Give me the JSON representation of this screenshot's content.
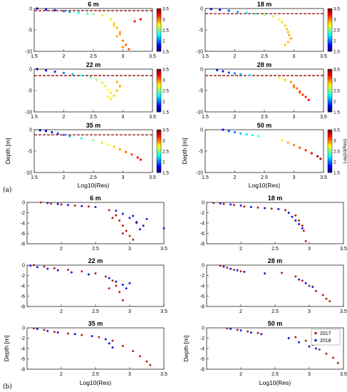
{
  "figure_labels": {
    "a": "(a)",
    "b": "(b)"
  },
  "legend": {
    "entries": [
      "2017",
      "2018"
    ],
    "colors": [
      "#b02a18",
      "#1a1ae0"
    ]
  },
  "colorbar": {
    "label": "Log10(Res)",
    "ticks": [
      "3.5",
      "3",
      "2.5",
      "2",
      "1.5"
    ],
    "range": [
      1.5,
      3.5
    ],
    "colormap": "jet"
  },
  "axes_text": {
    "xlabel": "Log10(Res)",
    "ylabel": "Depth [m]"
  },
  "chart_data": [
    {
      "type": "scatter",
      "section": "a",
      "title": "6 m",
      "threshold_depth": -0.5,
      "color_by": "x",
      "xlim": [
        1.5,
        3.5
      ],
      "ylim": [
        -10,
        0
      ],
      "xticks": [
        "1.5",
        "2",
        "2.5",
        "3",
        "3.5"
      ],
      "yticks": [
        "0",
        "-5",
        "-10"
      ],
      "x": [
        1.55,
        1.7,
        1.85,
        2.0,
        2.1,
        2.25,
        2.4,
        2.5,
        2.65,
        2.8,
        2.85,
        2.9,
        2.95,
        2.9,
        3.0,
        3.05,
        3.1,
        3.2,
        3.3,
        2.85,
        2.95,
        3.0
      ],
      "y": [
        0,
        -0.2,
        -0.4,
        -0.6,
        -0.8,
        -1.0,
        -1.2,
        -1.3,
        -1.6,
        -2.5,
        -3.5,
        -4.5,
        -5.5,
        -6.5,
        -7.5,
        -8.5,
        -9.5,
        -3,
        -2.5,
        -4,
        -6,
        -9
      ]
    },
    {
      "type": "scatter",
      "section": "a",
      "title": "18 m",
      "threshold_depth": -1.2,
      "color_by": "x",
      "xlim": [
        1.5,
        3.5
      ],
      "ylim": [
        -10,
        0
      ],
      "xticks": [
        "1.5",
        "2",
        "2.5",
        "3",
        "3.5"
      ],
      "yticks": [
        "0",
        "-5",
        "-10"
      ],
      "x": [
        1.6,
        1.75,
        1.9,
        2.05,
        2.2,
        2.35,
        2.5,
        2.65,
        2.75,
        2.8,
        2.85,
        2.88,
        2.9,
        2.92,
        2.95,
        2.9,
        2.85
      ],
      "y": [
        -0.1,
        -0.3,
        -0.5,
        -0.8,
        -1.0,
        -1.2,
        -1.4,
        -1.8,
        -2.5,
        -3.2,
        -4.0,
        -4.8,
        -5.5,
        -6.2,
        -7.0,
        -7.8,
        -8.5
      ]
    },
    {
      "type": "scatter",
      "section": "a",
      "title": "22 m",
      "threshold_depth": -1.5,
      "color_by": "x",
      "xlim": [
        1.5,
        3.5
      ],
      "ylim": [
        -10,
        0
      ],
      "xticks": [
        "1.5",
        "2",
        "2.5",
        "3",
        "3.5"
      ],
      "yticks": [
        "0",
        "-5",
        "-10"
      ],
      "x": [
        1.55,
        1.7,
        1.85,
        2.0,
        2.15,
        2.3,
        2.45,
        2.55,
        2.65,
        2.7,
        2.75,
        2.8,
        2.85,
        2.9,
        2.95,
        2.8,
        2.75,
        2.9
      ],
      "y": [
        0,
        -0.3,
        -0.6,
        -0.9,
        -1.2,
        -1.5,
        -1.9,
        -2.5,
        -3.2,
        -4.0,
        -4.8,
        -5.5,
        -6.2,
        -5.0,
        -4.0,
        -7.0,
        -6.5,
        -3.0
      ]
    },
    {
      "type": "scatter",
      "section": "a",
      "title": "28 m",
      "threshold_depth": -1.5,
      "color_by": "x",
      "xlim": [
        1.5,
        3.5
      ],
      "ylim": [
        -10,
        0
      ],
      "xticks": [
        "1.5",
        "2",
        "2.5",
        "3",
        "3.5"
      ],
      "yticks": [
        "0",
        "-5",
        "-10"
      ],
      "x": [
        1.7,
        1.8,
        1.9,
        2.0,
        2.1,
        2.25,
        2.75,
        2.85,
        2.95,
        3.0,
        3.05,
        3.1,
        3.15,
        3.2,
        3.25,
        3.0,
        3.1
      ],
      "y": [
        -0.2,
        -0.5,
        -0.8,
        -1.0,
        -1.2,
        -1.4,
        -2.0,
        -2.5,
        -3.0,
        -3.8,
        -4.5,
        -5.2,
        -6.0,
        -6.5,
        -7.2,
        -4.2,
        -5.5
      ]
    },
    {
      "type": "scatter",
      "section": "a",
      "title": "35 m",
      "threshold_depth": -1.2,
      "color_by": "x",
      "xlim": [
        1.5,
        3.5
      ],
      "ylim": [
        -10,
        0
      ],
      "xticks": [
        "1.5",
        "2",
        "2.5",
        "3",
        "3.5"
      ],
      "yticks": [
        "0",
        "-5",
        "-10"
      ],
      "x": [
        1.6,
        1.7,
        1.8,
        1.9,
        2.0,
        2.1,
        2.3,
        2.5,
        2.65,
        2.75,
        2.85,
        2.95,
        3.05,
        3.15,
        3.25,
        3.3
      ],
      "y": [
        -0.1,
        -0.3,
        -0.6,
        -0.9,
        -1.2,
        -1.5,
        -2.0,
        -2.5,
        -3.0,
        -3.5,
        -4.0,
        -4.6,
        -5.2,
        -5.8,
        -6.5,
        -7.0
      ]
    },
    {
      "type": "scatter",
      "section": "a",
      "title": "50 m",
      "threshold_depth": null,
      "color_by": "x",
      "xlim": [
        1.5,
        3.5
      ],
      "ylim": [
        -10,
        0
      ],
      "xticks": [
        "1.5",
        "2",
        "2.5",
        "3",
        "3.5"
      ],
      "yticks": [
        "0",
        "-5",
        "-10"
      ],
      "x": [
        1.8,
        1.9,
        2.0,
        2.1,
        2.2,
        2.3,
        2.4,
        2.8,
        2.9,
        3.0,
        3.1,
        3.2,
        3.3,
        3.4,
        3.45
      ],
      "y": [
        0,
        -0.3,
        -0.6,
        -0.9,
        -1.1,
        -1.3,
        -1.5,
        -2.5,
        -3.0,
        -3.6,
        -4.2,
        -4.8,
        -5.5,
        -6.2,
        -6.8
      ]
    },
    {
      "type": "scatter",
      "section": "b",
      "title": "6 m",
      "xlim": [
        1.5,
        3.5
      ],
      "ylim": [
        -8,
        0
      ],
      "xticks": [
        "2",
        "2.5",
        "3",
        "3.5"
      ],
      "yticks": [
        "0",
        "-2",
        "-4",
        "-6",
        "-8"
      ],
      "series": [
        {
          "name": "2017",
          "x": [
            1.7,
            1.85,
            2.0,
            2.2,
            2.4,
            2.7,
            2.8,
            2.85,
            2.9,
            2.95,
            3.0,
            3.05,
            2.9,
            3.1,
            2.75
          ],
          "y": [
            0,
            -0.2,
            -0.4,
            -0.6,
            -0.8,
            -1.5,
            -2.5,
            -3.5,
            -4.5,
            -5.5,
            -6.5,
            -7.2,
            -6.0,
            -4.0,
            -3.0
          ]
        },
        {
          "name": "2018",
          "x": [
            1.8,
            1.95,
            2.1,
            2.3,
            2.5,
            2.8,
            2.9,
            3.0,
            3.1,
            3.2,
            3.25,
            3.15,
            3.05,
            3.5
          ],
          "y": [
            -0.1,
            -0.3,
            -0.5,
            -0.7,
            -0.9,
            -1.6,
            -2.2,
            -3.0,
            -3.8,
            -4.5,
            -3.2,
            -5.2,
            -2.6,
            -5.0
          ]
        }
      ]
    },
    {
      "type": "scatter",
      "section": "b",
      "title": "18 m",
      "xlim": [
        1.5,
        3.5
      ],
      "ylim": [
        -8,
        0
      ],
      "xticks": [
        "2",
        "2.5",
        "3",
        "3.5"
      ],
      "yticks": [
        "0",
        "-2",
        "-4",
        "-6",
        "-8"
      ],
      "series": [
        {
          "name": "2017",
          "x": [
            1.6,
            1.75,
            1.9,
            2.05,
            2.25,
            2.45,
            2.65,
            2.8,
            2.85,
            2.9,
            2.92,
            2.95
          ],
          "y": [
            -0.1,
            -0.3,
            -0.5,
            -0.8,
            -1.0,
            -1.2,
            -1.5,
            -2.5,
            -3.5,
            -4.5,
            -5.5,
            -7.5
          ]
        },
        {
          "name": "2018",
          "x": [
            1.7,
            1.85,
            2.0,
            2.15,
            2.35,
            2.55,
            2.7,
            2.75,
            2.8,
            2.85,
            2.9
          ],
          "y": [
            -0.2,
            -0.4,
            -0.6,
            -0.9,
            -1.1,
            -1.3,
            -2.0,
            -2.8,
            -3.5,
            -4.2,
            -5.0
          ]
        }
      ]
    },
    {
      "type": "scatter",
      "section": "b",
      "title": "22 m",
      "xlim": [
        1.5,
        3.5
      ],
      "ylim": [
        -8,
        0
      ],
      "xticks": [
        "2",
        "2.5",
        "3",
        "3.5"
      ],
      "yticks": [
        "0",
        "-2",
        "-4",
        "-6",
        "-8"
      ],
      "series": [
        {
          "name": "2017",
          "x": [
            1.6,
            1.75,
            1.9,
            2.1,
            2.3,
            2.5,
            2.65,
            2.75,
            2.8,
            2.85,
            2.9,
            2.7
          ],
          "y": [
            0,
            -0.3,
            -0.6,
            -0.9,
            -1.2,
            -1.6,
            -2.2,
            -3.0,
            -4.0,
            -5.2,
            -6.8,
            -4.5
          ]
        },
        {
          "name": "2018",
          "x": [
            1.55,
            1.65,
            1.8,
            1.95,
            2.15,
            2.4,
            2.7,
            2.8,
            2.9,
            2.95,
            3.0
          ],
          "y": [
            -0.1,
            -0.4,
            -0.7,
            -1.0,
            -1.4,
            -1.8,
            -2.5,
            -3.2,
            -3.8,
            -4.5,
            -3.5
          ]
        }
      ]
    },
    {
      "type": "scatter",
      "section": "b",
      "title": "28 m",
      "xlim": [
        1.5,
        3.5
      ],
      "ylim": [
        -8,
        0
      ],
      "xticks": [
        "2",
        "2.5",
        "3",
        "3.5"
      ],
      "yticks": [
        "0",
        "-2",
        "-4",
        "-6",
        "-8"
      ],
      "series": [
        {
          "name": "2017",
          "x": [
            1.7,
            1.8,
            1.9,
            2.0,
            2.6,
            2.8,
            2.9,
            3.0,
            3.1,
            3.2,
            3.25,
            3.3
          ],
          "y": [
            -0.1,
            -0.5,
            -0.9,
            -1.2,
            -1.5,
            -2.2,
            -3.0,
            -4.0,
            -5.0,
            -5.8,
            -6.5,
            -7.0
          ]
        },
        {
          "name": "2018",
          "x": [
            1.75,
            1.85,
            1.95,
            2.05,
            2.35,
            2.85,
            2.95,
            3.05
          ],
          "y": [
            -0.3,
            -0.7,
            -1.0,
            -1.3,
            -1.6,
            -2.8,
            -3.5,
            -4.2
          ]
        }
      ]
    },
    {
      "type": "scatter",
      "section": "b",
      "title": "35 m",
      "xlim": [
        1.5,
        3.5
      ],
      "ylim": [
        -8,
        0
      ],
      "xticks": [
        "2",
        "2.5",
        "3",
        "3.5"
      ],
      "yticks": [
        "0",
        "-2",
        "-4",
        "-6",
        "-8"
      ],
      "series": [
        {
          "name": "2017",
          "x": [
            1.6,
            1.75,
            1.9,
            2.1,
            2.3,
            2.55,
            2.75,
            2.9,
            3.05,
            3.15,
            3.25,
            3.3
          ],
          "y": [
            -0.1,
            -0.4,
            -0.8,
            -1.1,
            -1.4,
            -1.8,
            -2.5,
            -3.5,
            -4.5,
            -5.5,
            -6.5,
            -7.2
          ]
        },
        {
          "name": "2018",
          "x": [
            1.65,
            1.8,
            1.95,
            2.2,
            2.45,
            2.65,
            2.7,
            2.75
          ],
          "y": [
            -0.2,
            -0.6,
            -0.9,
            -1.2,
            -1.6,
            -2.2,
            -3.0,
            -3.8
          ]
        }
      ]
    },
    {
      "type": "scatter",
      "section": "b",
      "title": "50 m",
      "xlim": [
        1.5,
        3.5
      ],
      "ylim": [
        -8,
        0
      ],
      "xticks": [
        "2",
        "2.5",
        "3",
        "3.5"
      ],
      "yticks": [
        "0",
        "-2",
        "-4",
        "-6",
        "-8"
      ],
      "series": [
        {
          "name": "2017",
          "x": [
            1.8,
            1.95,
            2.1,
            2.25,
            2.8,
            2.95,
            3.05,
            3.15,
            3.25,
            3.35,
            3.42
          ],
          "y": [
            -0.1,
            -0.4,
            -0.7,
            -1.0,
            -1.8,
            -2.5,
            -3.3,
            -4.2,
            -5.0,
            -5.8,
            -6.8
          ]
        },
        {
          "name": "2018",
          "x": [
            1.85,
            2.0,
            2.15,
            2.3,
            2.7,
            2.85,
            3.0,
            3.1
          ],
          "y": [
            -0.2,
            -0.5,
            -0.9,
            -1.2,
            -2.0,
            -2.8,
            -3.6,
            -4.0
          ]
        }
      ]
    }
  ]
}
